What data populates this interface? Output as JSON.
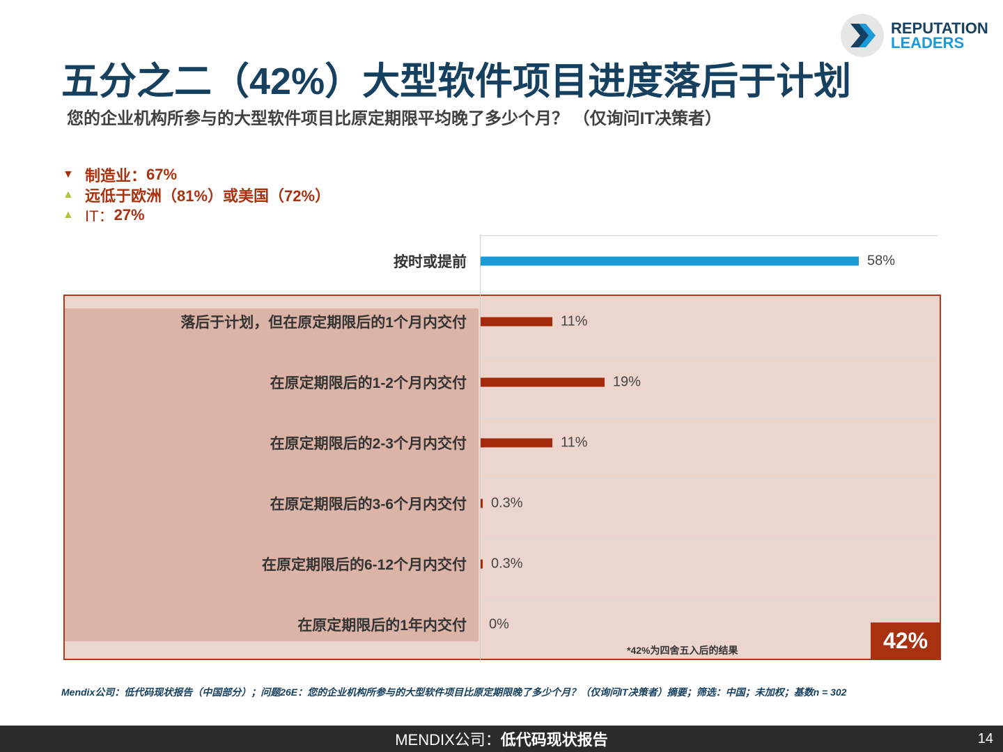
{
  "title": "五分之二（42%）大型软件项目进度落后于计划",
  "subtitle": "您的企业机构所参与的大型软件项目比原定期限平均晚了多少个月？ （仅询问IT决策者）",
  "logo": {
    "line1": "REPUTATION",
    "line2": "LEADERS"
  },
  "notes": [
    {
      "icon": "triangle-down",
      "color": "#a83210",
      "label": "制造业：",
      "value": "67%"
    },
    {
      "icon": "triangle-up",
      "color": "#b5c33a",
      "label": "远低于欧洲（81%）或美国（72%）",
      "value": ""
    },
    {
      "icon": "triangle-up",
      "color": "#b5c33a",
      "label": "IT：",
      "value": "27%"
    }
  ],
  "chart_data": {
    "type": "bar",
    "orientation": "horizontal",
    "categories": [
      "按时或提前",
      "落后于计划，但在原定期限后的1个月内交付",
      "在原定期限后的1-2个月内交付",
      "在原定期限后的2-3个月内交付",
      "在原定期限后的3-6个月内交付",
      "在原定期限后的6-12个月内交付",
      "在原定期限后的1年内交付"
    ],
    "values": [
      58,
      11,
      19,
      11,
      0.3,
      0.3,
      0
    ],
    "value_labels": [
      "58%",
      "11%",
      "19%",
      "11%",
      "0.3%",
      "0.3%",
      "0%"
    ],
    "colors": [
      "#1a9ad6",
      "#a52a0a",
      "#a52a0a",
      "#a52a0a",
      "#a52a0a",
      "#a52a0a",
      "#a52a0a"
    ],
    "xlim": [
      0,
      70
    ],
    "highlight_total": "42%",
    "highlight_note": "*42%为四舍五入后的结果"
  },
  "source": "Mendix公司：低代码现状报告（中国部分）；问题26E：您的企业机构所参与的大型软件项目比原定期限晚了多少个月？（仅询问IT决策者）摘要；筛选：中国；未加权；基数n = 302",
  "footer": {
    "brand": "MENDIX公司：",
    "report": "低代码现状报告",
    "page": "14"
  }
}
